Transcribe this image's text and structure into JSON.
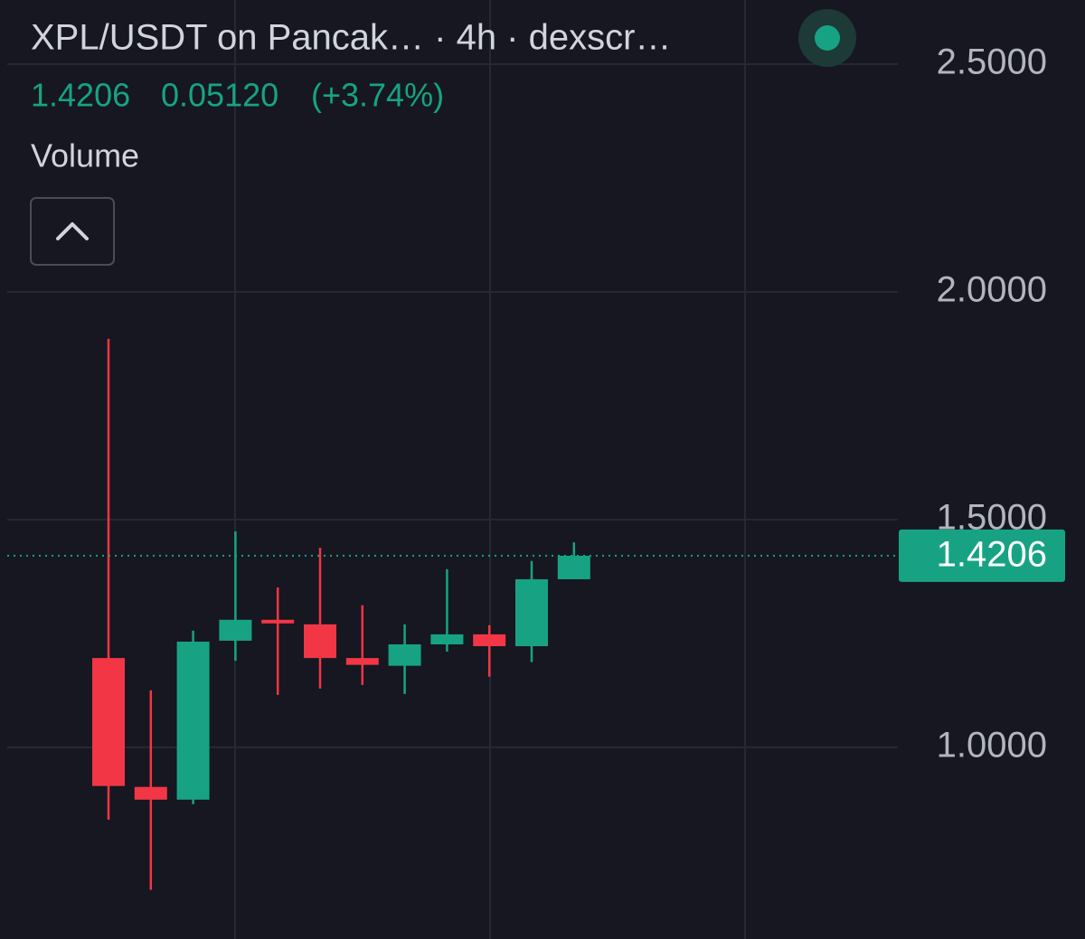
{
  "chart_data": {
    "type": "candlestick",
    "title": "XPL/USDT on Pancak… · 4h · dexscr…",
    "last_price": 1.4206,
    "change": {
      "value": 0.0512,
      "label": "0.05120"
    },
    "change_percent": {
      "value": 3.74,
      "label": "(+3.74%)"
    },
    "indicator": "Volume",
    "categories": [
      null,
      null,
      null,
      null,
      null,
      null,
      null,
      null,
      null,
      null,
      null,
      null
    ],
    "open": [
      1.196,
      0.913,
      0.885,
      1.234,
      1.28,
      1.27,
      1.196,
      1.179,
      1.226,
      1.248,
      1.222,
      1.369
    ],
    "high": [
      1.897,
      1.125,
      1.256,
      1.474,
      1.351,
      1.438,
      1.312,
      1.27,
      1.391,
      1.268,
      1.409,
      1.45
    ],
    "low": [
      0.841,
      0.687,
      0.875,
      1.19,
      1.115,
      1.129,
      1.137,
      1.117,
      1.21,
      1.155,
      1.187,
      1.369
    ],
    "close": [
      0.915,
      0.885,
      1.232,
      1.28,
      1.272,
      1.196,
      1.181,
      1.226,
      1.248,
      1.222,
      1.369,
      1.4206
    ],
    "up_color": "#17a383",
    "down_color": "#f23645",
    "ylim": [
      0.579,
      2.641
    ],
    "yticks": [
      {
        "value": 1.0,
        "label": "1.0000"
      },
      {
        "value": 1.5,
        "label": "1.5000"
      },
      {
        "value": 2.0,
        "label": "2.0000"
      },
      {
        "value": 2.5,
        "label": "2.5000"
      }
    ],
    "grid": true
  }
}
